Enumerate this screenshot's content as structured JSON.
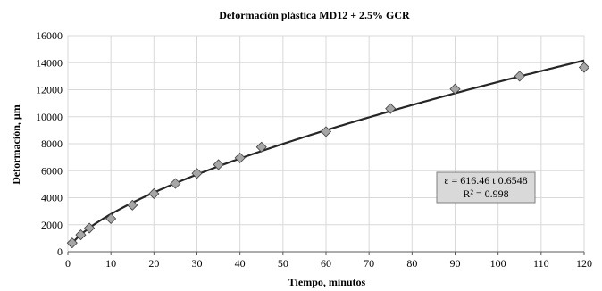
{
  "chart_data": {
    "type": "scatter",
    "title": "Deformación plástica MD12 + 2.5% GCR",
    "xlabel": "Tiempo, minutos",
    "ylabel": "Deformación, µm",
    "xlim": [
      0,
      120
    ],
    "ylim": [
      0,
      16000
    ],
    "x_ticks": [
      "0",
      "10",
      "20",
      "30",
      "40",
      "50",
      "60",
      "70",
      "80",
      "90",
      "100",
      "110",
      "120"
    ],
    "y_ticks": [
      "0",
      "2000",
      "4000",
      "6000",
      "8000",
      "10000",
      "12000",
      "14000",
      "16000"
    ],
    "grid": true,
    "series": [
      {
        "marker": "diamond",
        "color": "#a6a6a6",
        "x": [
          1,
          3,
          5,
          10,
          15,
          20,
          25,
          30,
          35,
          40,
          45,
          60,
          75,
          90,
          105,
          120
        ],
        "y": [
          650,
          1250,
          1750,
          2450,
          3450,
          4300,
          5050,
          5800,
          6450,
          6950,
          7750,
          8900,
          10600,
          12050,
          13000,
          13650
        ]
      }
    ],
    "trendline": {
      "type": "power",
      "a": 616.46,
      "b": 0.6548,
      "color": "#262626"
    },
    "annotation": {
      "line1": "ε = 616.46 t 0.6548",
      "line2": "R² = 0.998"
    }
  }
}
